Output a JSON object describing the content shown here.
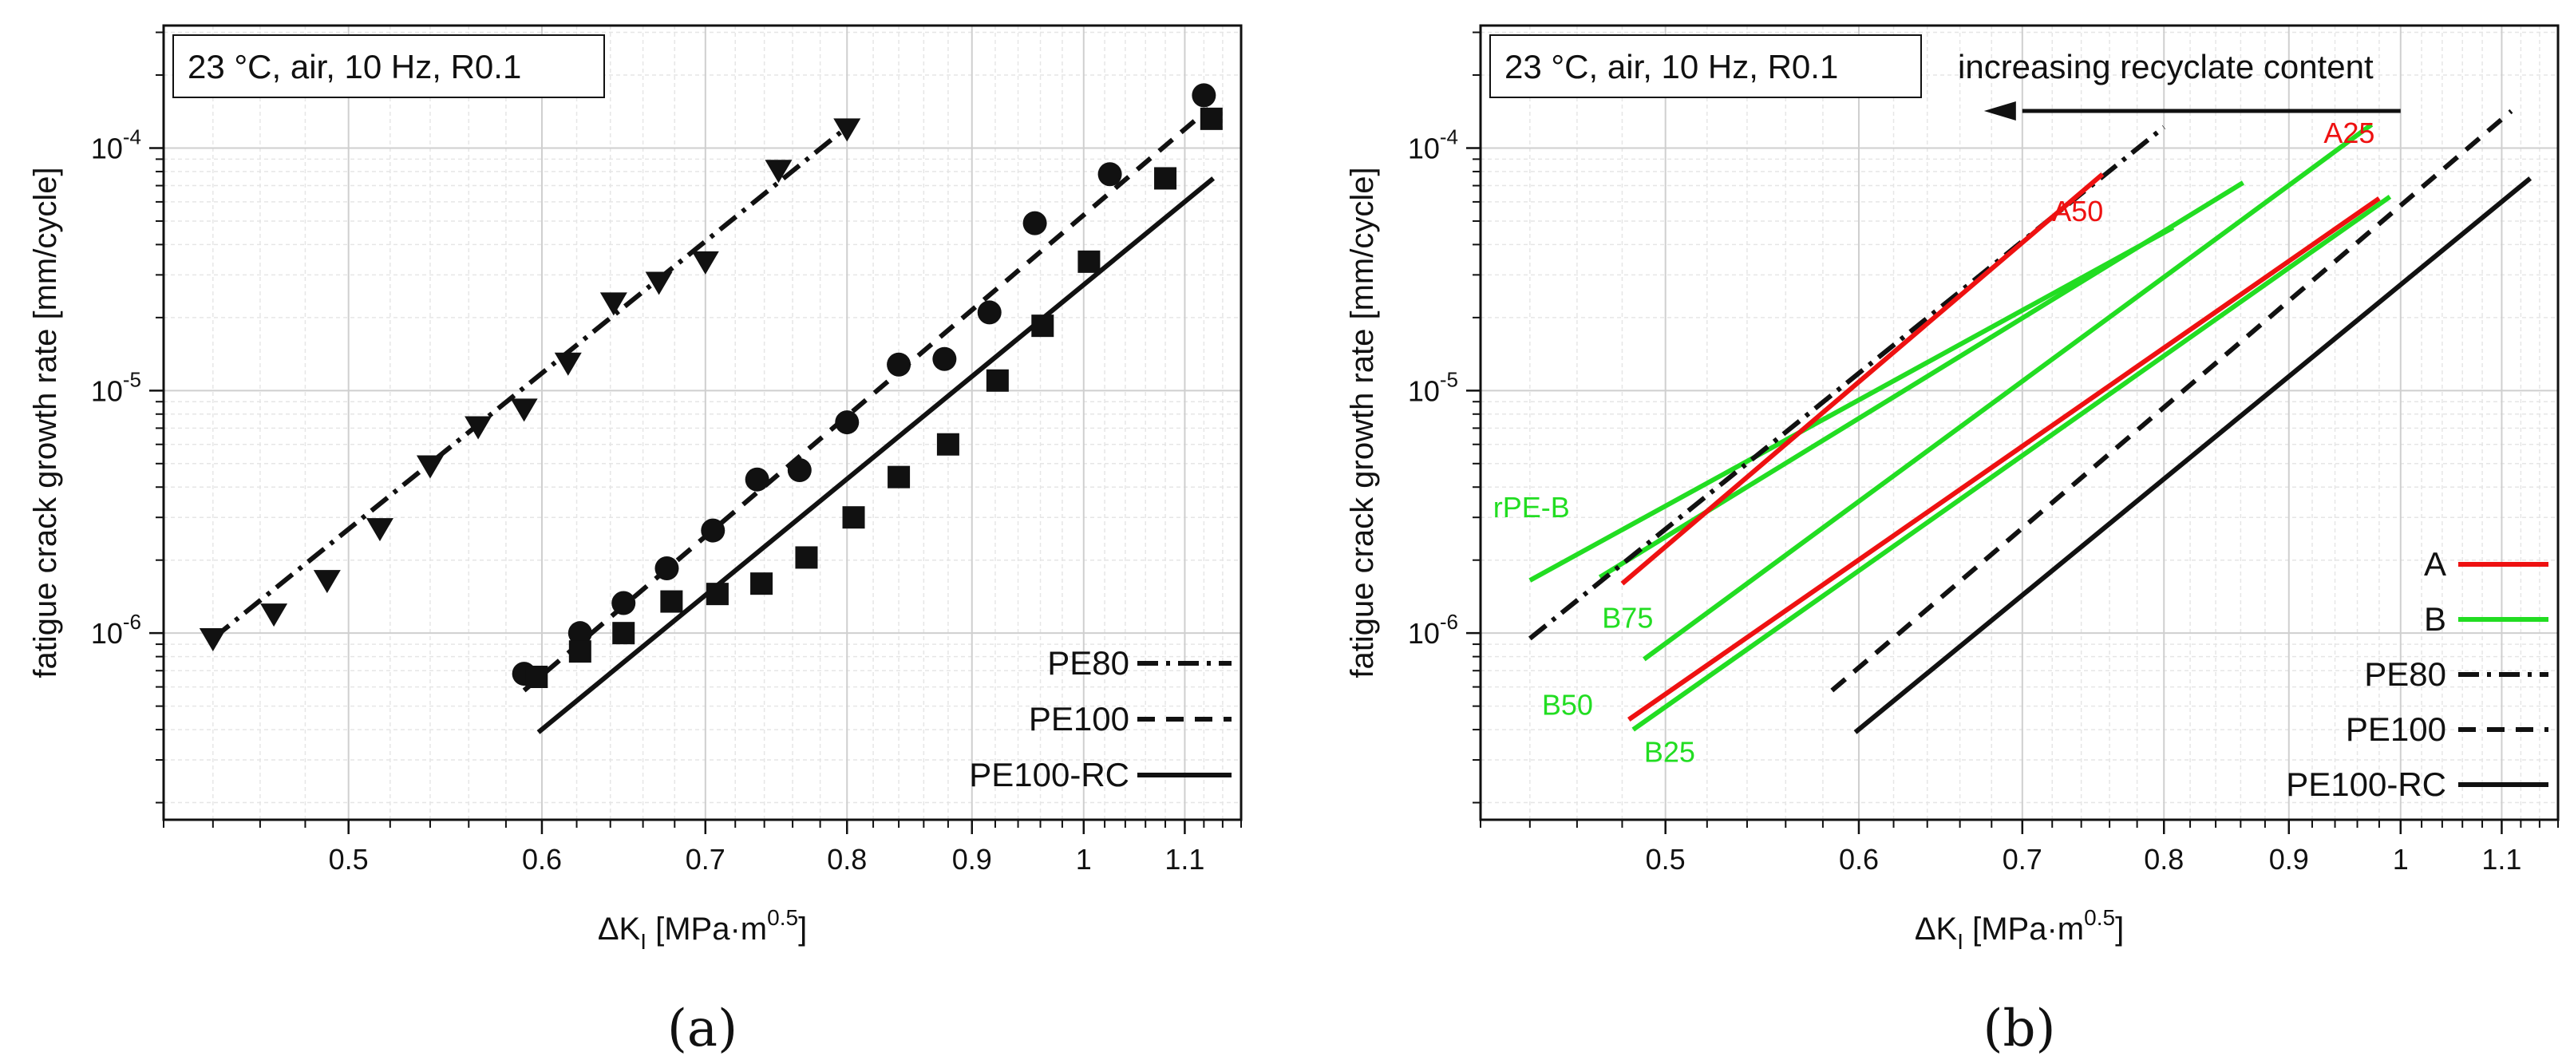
{
  "chart_data": [
    {
      "type": "scatter",
      "panel_label": "(a)",
      "condition": "23 °C, air, 10 Hz, R0.1",
      "xlabel": "ΔK",
      "xlabel_sub": "I",
      "xlabel_unit": " [MPa·m",
      "xlabel_sup": "0.5",
      "xlabel_end": "]",
      "ylabel": "fatigue crack growth rate [mm/cycle]",
      "x_scale": "log",
      "y_scale": "log",
      "xlim": [
        0.42,
        1.16
      ],
      "ylim": [
        1.7e-07,
        0.00032
      ],
      "x_ticks": [
        {
          "v": 0.5,
          "label": "0.5"
        },
        {
          "v": 0.6,
          "label": "0.6"
        },
        {
          "v": 0.7,
          "label": "0.7"
        },
        {
          "v": 0.8,
          "label": "0.8"
        },
        {
          "v": 0.9,
          "label": "0.9"
        },
        {
          "v": 1.0,
          "label": "1"
        },
        {
          "v": 1.1,
          "label": "1.1"
        }
      ],
      "y_ticks": [
        {
          "v": 1e-06,
          "base": "10",
          "exp": "-6"
        },
        {
          "v": 1e-05,
          "base": "10",
          "exp": "-5"
        },
        {
          "v": 0.0001,
          "base": "10",
          "exp": "-4"
        }
      ],
      "legend_position": "bottom-right",
      "series": [
        {
          "name": "PE80",
          "marker": "triangle-down",
          "dash": "dash-dot",
          "color": "#111111",
          "x": [
            0.44,
            0.466,
            0.49,
            0.515,
            0.54,
            0.565,
            0.59,
            0.615,
            0.642,
            0.67,
            0.7,
            0.75,
            0.8
          ],
          "y": [
            9.5e-07,
            1.2e-06,
            1.65e-06,
            2.7e-06,
            4.9e-06,
            7.1e-06,
            8.4e-06,
            1.3e-05,
            2.3e-05,
            2.8e-05,
            3.4e-05,
            8.1e-05,
            0.00012
          ],
          "fit": {
            "x": [
              0.44,
              0.8
            ],
            "y": [
              9.5e-07,
              0.000122
            ]
          }
        },
        {
          "name": "PE100",
          "marker": "circle",
          "dash": "dash",
          "color": "#111111",
          "x": [
            0.59,
            0.622,
            0.648,
            0.675,
            0.705,
            0.735,
            0.765,
            0.8,
            0.84,
            0.877,
            0.915,
            0.955,
            1.025,
            1.12
          ],
          "y": [
            6.8e-07,
            1e-06,
            1.33e-06,
            1.85e-06,
            2.65e-06,
            4.3e-06,
            4.7e-06,
            7.4e-06,
            1.28e-05,
            1.35e-05,
            2.1e-05,
            4.9e-05,
            7.8e-05,
            0.000165
          ],
          "fit": {
            "x": [
              0.59,
              1.125
            ],
            "y": [
              5.8e-07,
              0.000145
            ]
          }
        },
        {
          "name": "PE100-RC",
          "marker": "square",
          "dash": "solid",
          "color": "#111111",
          "x": [
            0.597,
            0.622,
            0.648,
            0.678,
            0.708,
            0.738,
            0.77,
            0.805,
            0.84,
            0.88,
            0.922,
            0.962,
            1.005,
            1.08,
            1.128
          ],
          "y": [
            6.6e-07,
            8.4e-07,
            1e-06,
            1.35e-06,
            1.45e-06,
            1.6e-06,
            2.05e-06,
            3e-06,
            4.4e-06,
            6e-06,
            1.1e-05,
            1.85e-05,
            3.4e-05,
            7.5e-05,
            0.000132
          ],
          "fit": {
            "x": [
              0.598,
              1.13
            ],
            "y": [
              3.9e-07,
              7.5e-05
            ]
          }
        }
      ]
    },
    {
      "type": "line",
      "panel_label": "(b)",
      "condition": "23 °C, air, 10 Hz, R0.1",
      "arrow_label": "increasing recyclate content",
      "xlabel": "ΔK",
      "xlabel_sub": "I",
      "xlabel_unit": " [MPa·m",
      "xlabel_sup": "0.5",
      "xlabel_end": "]",
      "ylabel": "fatigue crack growth rate [mm/cycle]",
      "x_scale": "log",
      "y_scale": "log",
      "xlim": [
        0.42,
        1.16
      ],
      "ylim": [
        1.7e-07,
        0.00032
      ],
      "x_ticks": [
        {
          "v": 0.5,
          "label": "0.5"
        },
        {
          "v": 0.6,
          "label": "0.6"
        },
        {
          "v": 0.7,
          "label": "0.7"
        },
        {
          "v": 0.8,
          "label": "0.8"
        },
        {
          "v": 0.9,
          "label": "0.9"
        },
        {
          "v": 1.0,
          "label": "1"
        },
        {
          "v": 1.1,
          "label": "1.1"
        }
      ],
      "y_ticks": [
        {
          "v": 1e-06,
          "base": "10",
          "exp": "-6"
        },
        {
          "v": 1e-05,
          "base": "10",
          "exp": "-5"
        },
        {
          "v": 0.0001,
          "base": "10",
          "exp": "-4"
        }
      ],
      "legend_position": "bottom-right",
      "legend": [
        {
          "name": "A",
          "color": "#ee1111",
          "dash": "solid"
        },
        {
          "name": "B",
          "color": "#22dd22",
          "dash": "solid"
        },
        {
          "name": "PE80",
          "color": "#111111",
          "dash": "dash-dot"
        },
        {
          "name": "PE100",
          "color": "#111111",
          "dash": "dash"
        },
        {
          "name": "PE100-RC",
          "color": "#111111",
          "dash": "solid"
        }
      ],
      "series": [
        {
          "name": "PE80",
          "group": "PE80",
          "color": "#111111",
          "dash": "dash-dot",
          "x": [
            0.44,
            0.8
          ],
          "y": [
            9.5e-07,
            0.000122
          ]
        },
        {
          "name": "PE100",
          "group": "PE100",
          "color": "#111111",
          "dash": "dash",
          "x": [
            0.585,
            1.11
          ],
          "y": [
            5.8e-07,
            0.000142
          ]
        },
        {
          "name": "PE100-RC",
          "group": "PE100-RC",
          "color": "#111111",
          "dash": "solid",
          "x": [
            0.598,
            1.13
          ],
          "y": [
            3.9e-07,
            7.5e-05
          ]
        },
        {
          "name": "rPE-B",
          "group": "B",
          "color": "#22dd22",
          "dash": "solid",
          "x": [
            0.44,
            0.807
          ],
          "y": [
            1.65e-06,
            4.7e-05
          ]
        },
        {
          "name": "B75",
          "group": "B",
          "color": "#22dd22",
          "dash": "solid",
          "x": [
            0.47,
            0.862
          ],
          "y": [
            1.7e-06,
            7.2e-05
          ]
        },
        {
          "name": "B50",
          "group": "B",
          "color": "#22dd22",
          "dash": "solid",
          "x": [
            0.49,
            0.973
          ],
          "y": [
            7.8e-07,
            0.000125
          ]
        },
        {
          "name": "B25",
          "group": "B",
          "color": "#22dd22",
          "dash": "solid",
          "x": [
            0.485,
            0.99
          ],
          "y": [
            4e-07,
            6.3e-05
          ]
        },
        {
          "name": "A50",
          "group": "A",
          "color": "#ee1111",
          "dash": "solid",
          "x": [
            0.48,
            0.755
          ],
          "y": [
            1.6e-06,
            7.8e-05
          ]
        },
        {
          "name": "A25",
          "group": "A",
          "color": "#ee1111",
          "dash": "solid",
          "x": [
            0.483,
            0.98
          ],
          "y": [
            4.4e-07,
            6.2e-05
          ]
        }
      ],
      "annotations": [
        {
          "text": "A50",
          "color": "#ee1111"
        },
        {
          "text": "A25",
          "color": "#ee1111"
        },
        {
          "text": "rPE-B",
          "color": "#22dd22"
        },
        {
          "text": "B75",
          "color": "#22dd22"
        },
        {
          "text": "B50",
          "color": "#22dd22"
        },
        {
          "text": "B25",
          "color": "#22dd22"
        }
      ]
    }
  ]
}
